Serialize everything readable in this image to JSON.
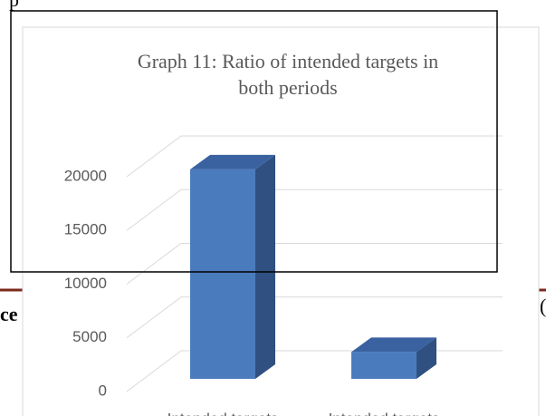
{
  "chart_data": {
    "type": "bar3d",
    "title": "Graph 11: Ratio of intended targets in both periods",
    "categories": [
      "Intended targets",
      "Intended targets"
    ],
    "values": [
      19500,
      2500
    ],
    "color": "#4a7bbd",
    "ylim": [
      0,
      20000
    ],
    "yticks": [
      0,
      5000,
      10000,
      15000,
      20000
    ],
    "grid": true
  },
  "page_fragments": {
    "top_left": "p",
    "left": "ce",
    "right": "("
  }
}
